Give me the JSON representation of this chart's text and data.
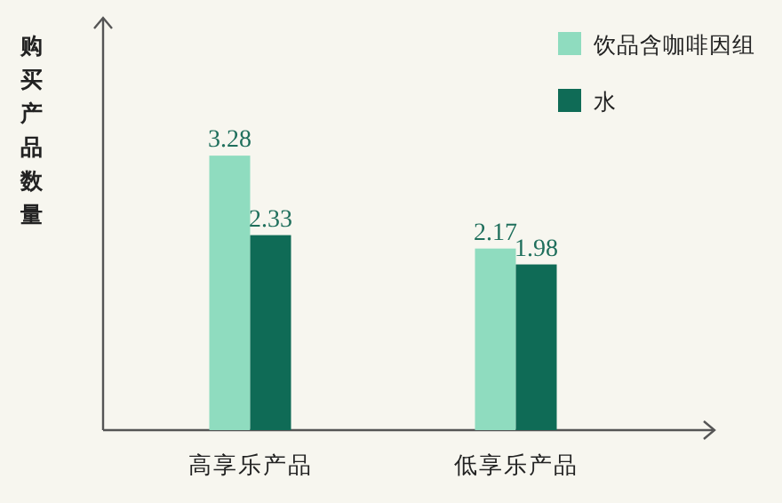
{
  "chart_data": {
    "type": "bar",
    "ylabel": "购买产品数量",
    "categories": [
      "高享乐产品",
      "低享乐产品"
    ],
    "series": [
      {
        "name": "饮品含咖啡因组",
        "color": "#8fdcbf",
        "values": [
          3.28,
          2.17
        ]
      },
      {
        "name": "水",
        "color": "#0f6b56",
        "values": [
          2.33,
          1.98
        ]
      }
    ],
    "ylim": [
      0,
      4.8
    ],
    "data_labels": true,
    "legend": "top right"
  }
}
